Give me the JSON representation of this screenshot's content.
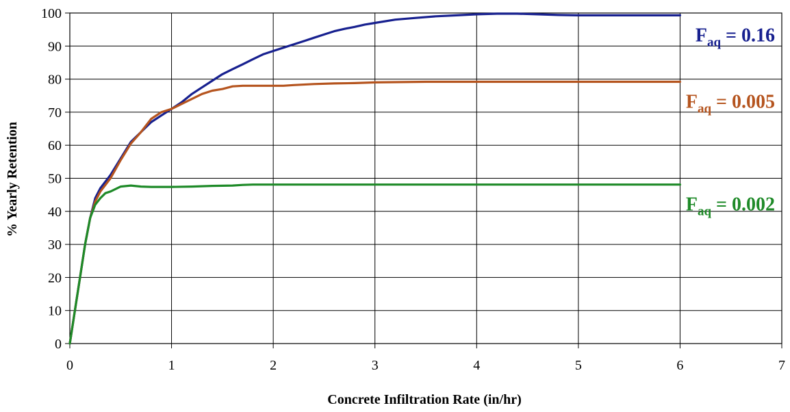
{
  "chart_data": {
    "type": "line",
    "xlabel": "Concrete Infiltration Rate (in/hr)",
    "ylabel": "% Yearly Retention",
    "xlim": [
      0,
      7
    ],
    "ylim": [
      0,
      100
    ],
    "xticks": [
      0,
      1,
      2,
      3,
      4,
      5,
      6,
      7
    ],
    "yticks": [
      0,
      10,
      20,
      30,
      40,
      50,
      60,
      70,
      80,
      90,
      100
    ],
    "grid": true,
    "series": [
      {
        "label_main": "F",
        "label_sub": "aq",
        "label_value": " = 0.16",
        "color": "#17208f",
        "x": [
          0,
          0.05,
          0.1,
          0.15,
          0.2,
          0.25,
          0.3,
          0.4,
          0.5,
          0.6,
          0.7,
          0.8,
          0.9,
          1.0,
          1.1,
          1.2,
          1.3,
          1.4,
          1.5,
          1.6,
          1.7,
          1.8,
          1.9,
          2.0,
          2.1,
          2.2,
          2.3,
          2.4,
          2.5,
          2.6,
          2.7,
          2.8,
          2.9,
          3.0,
          3.2,
          3.4,
          3.6,
          3.8,
          4.0,
          4.2,
          4.4,
          4.6,
          4.8,
          5.0,
          5.5,
          6.0
        ],
        "y": [
          0,
          10,
          20,
          30,
          38,
          44,
          47,
          51,
          56,
          61,
          64,
          67,
          69,
          71,
          73,
          75.5,
          77.5,
          79.5,
          81.5,
          83,
          84.5,
          86,
          87.5,
          88.5,
          89.5,
          90.5,
          91.5,
          92.5,
          93.5,
          94.5,
          95.2,
          95.8,
          96.5,
          97,
          98,
          98.5,
          99,
          99.3,
          99.6,
          99.8,
          99.8,
          99.6,
          99.4,
          99.3,
          99.3,
          99.3
        ]
      },
      {
        "label_main": "F",
        "label_sub": "aq",
        "label_value": " = 0.005",
        "color": "#b5541e",
        "x": [
          0,
          0.05,
          0.1,
          0.15,
          0.2,
          0.25,
          0.3,
          0.4,
          0.5,
          0.6,
          0.7,
          0.8,
          0.9,
          1.0,
          1.1,
          1.2,
          1.3,
          1.4,
          1.5,
          1.6,
          1.7,
          1.8,
          1.9,
          2.0,
          2.1,
          2.2,
          2.4,
          2.6,
          2.8,
          3.0,
          3.5,
          4.0,
          5.0,
          6.0
        ],
        "y": [
          0,
          10,
          20,
          30,
          38,
          43,
          46,
          50,
          55.5,
          60.5,
          64,
          68,
          70,
          71,
          72.5,
          74,
          75.5,
          76.5,
          77,
          77.8,
          78,
          78,
          78,
          78,
          78,
          78.2,
          78.5,
          78.7,
          78.8,
          79,
          79.2,
          79.2,
          79.2,
          79.2
        ]
      },
      {
        "label_main": "F",
        "label_sub": "aq",
        "label_value": " = 0.002",
        "color": "#1e8a28",
        "x": [
          0,
          0.05,
          0.1,
          0.15,
          0.2,
          0.25,
          0.3,
          0.35,
          0.4,
          0.5,
          0.6,
          0.7,
          0.8,
          1.0,
          1.2,
          1.4,
          1.6,
          1.7,
          1.8,
          2.0,
          3.0,
          4.0,
          5.0,
          6.0
        ],
        "y": [
          0,
          10,
          20,
          30,
          38,
          42,
          44,
          45.5,
          46,
          47.5,
          47.8,
          47.5,
          47.4,
          47.4,
          47.5,
          47.7,
          47.8,
          48,
          48.1,
          48.1,
          48.1,
          48.1,
          48.1,
          48.1
        ]
      }
    ]
  }
}
